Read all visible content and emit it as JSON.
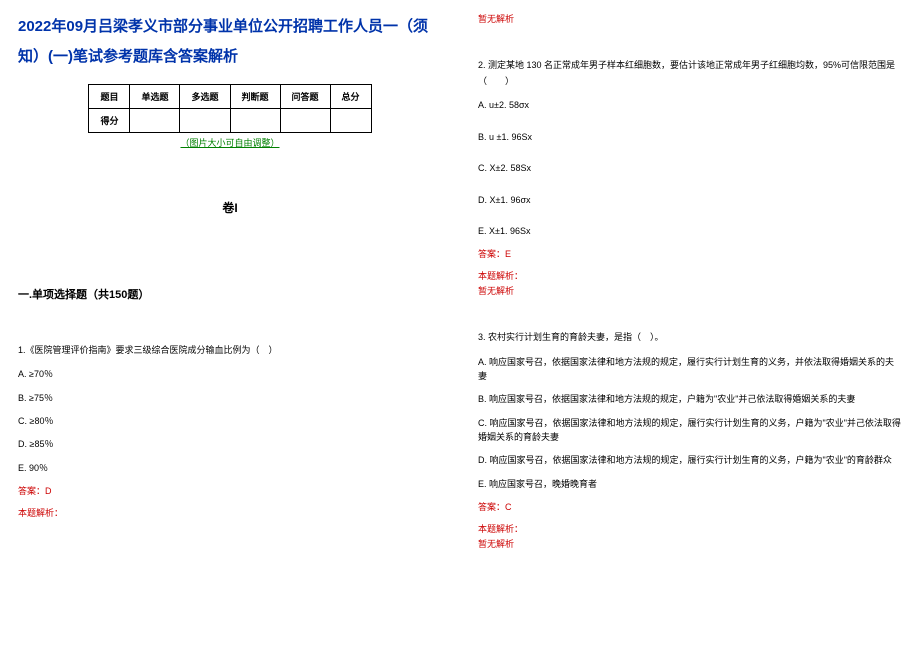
{
  "title": "2022年09月吕梁孝义市部分事业单位公开招聘工作人员一（须知）(一)笔试参考题库含答案解析",
  "score_table": {
    "headers": [
      "题目",
      "单选题",
      "多选题",
      "判断题",
      "问答题",
      "总分"
    ],
    "row_label": "得分"
  },
  "image_note": "（图片大小可自由调整）",
  "volume": "卷I",
  "section_header": "一.单项选择题（共150题）",
  "q1": {
    "stem": "1.《医院管理评价指南》要求三级综合医院成分输血比例为（　）",
    "opts": [
      "A. ≥70％",
      "B. ≥75％",
      "C. ≥80％",
      "D. ≥85％",
      "E. 90％"
    ],
    "answer": "答案：D",
    "analysis_label": "本题解析："
  },
  "q2": {
    "no_analysis": "暂无解析",
    "stem": "2. 测定某地 130 名正常成年男子样本红细胞数，要估计该地正常成年男子红细胞均数，95%可信限范围是（　　）",
    "opts": [
      "A. u±2. 58σx",
      "B. u ±1. 96Sx",
      "C. X±2. 58Sx",
      "D. X±1. 96σx",
      "E. X±1. 96Sx"
    ],
    "answer": "答案：E",
    "analysis_label": "本题解析：",
    "analysis_none": "暂无解析"
  },
  "q3": {
    "stem": "3. 农村实行计划生育的育龄夫妻，是指（　）。",
    "opts": [
      "A. 响应国家号召，依据国家法律和地方法规的规定，履行实行计划生育的义务，并依法取得婚姻关系的夫妻",
      "B. 响应国家号召，依据国家法律和地方法规的规定，户籍为\"农业\"并己依法取得婚姻关系的夫妻",
      "C. 响应国家号召，依据国家法律和地方法规的规定，履行实行计划生育的义务，户籍为\"农业\"并己依法取得婚姻关系的育龄夫妻",
      "D. 响应国家号召，依据国家法律和地方法规的规定，履行实行计划生育的义务，户籍为\"农业\"的育龄群众",
      "E. 响应国家号召，晚婚晚育者"
    ],
    "answer": "答案：C",
    "analysis_label": "本题解析：",
    "analysis_none": "暂无解析"
  }
}
